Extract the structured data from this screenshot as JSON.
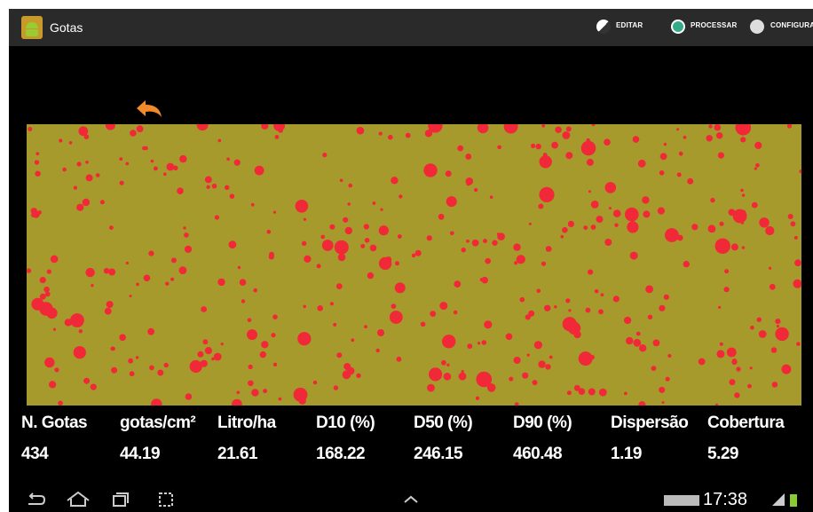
{
  "app_bar": {
    "title": "Gotas",
    "actions": [
      "EDITAR",
      "PROCESSAR",
      "CONFIGURAR"
    ]
  },
  "results": {
    "headers": [
      "N. Gotas",
      "gotas/cm²",
      "Litro/ha",
      "D10 (%)",
      "D50 (%)",
      "D90 (%)",
      "Dispersão",
      "Cobertura"
    ],
    "values": [
      "434",
      "44.19",
      "21.61",
      "168.22",
      "246.15",
      "460.48",
      "1.19",
      "5.29"
    ]
  },
  "status_bar": {
    "time": "17:38"
  }
}
